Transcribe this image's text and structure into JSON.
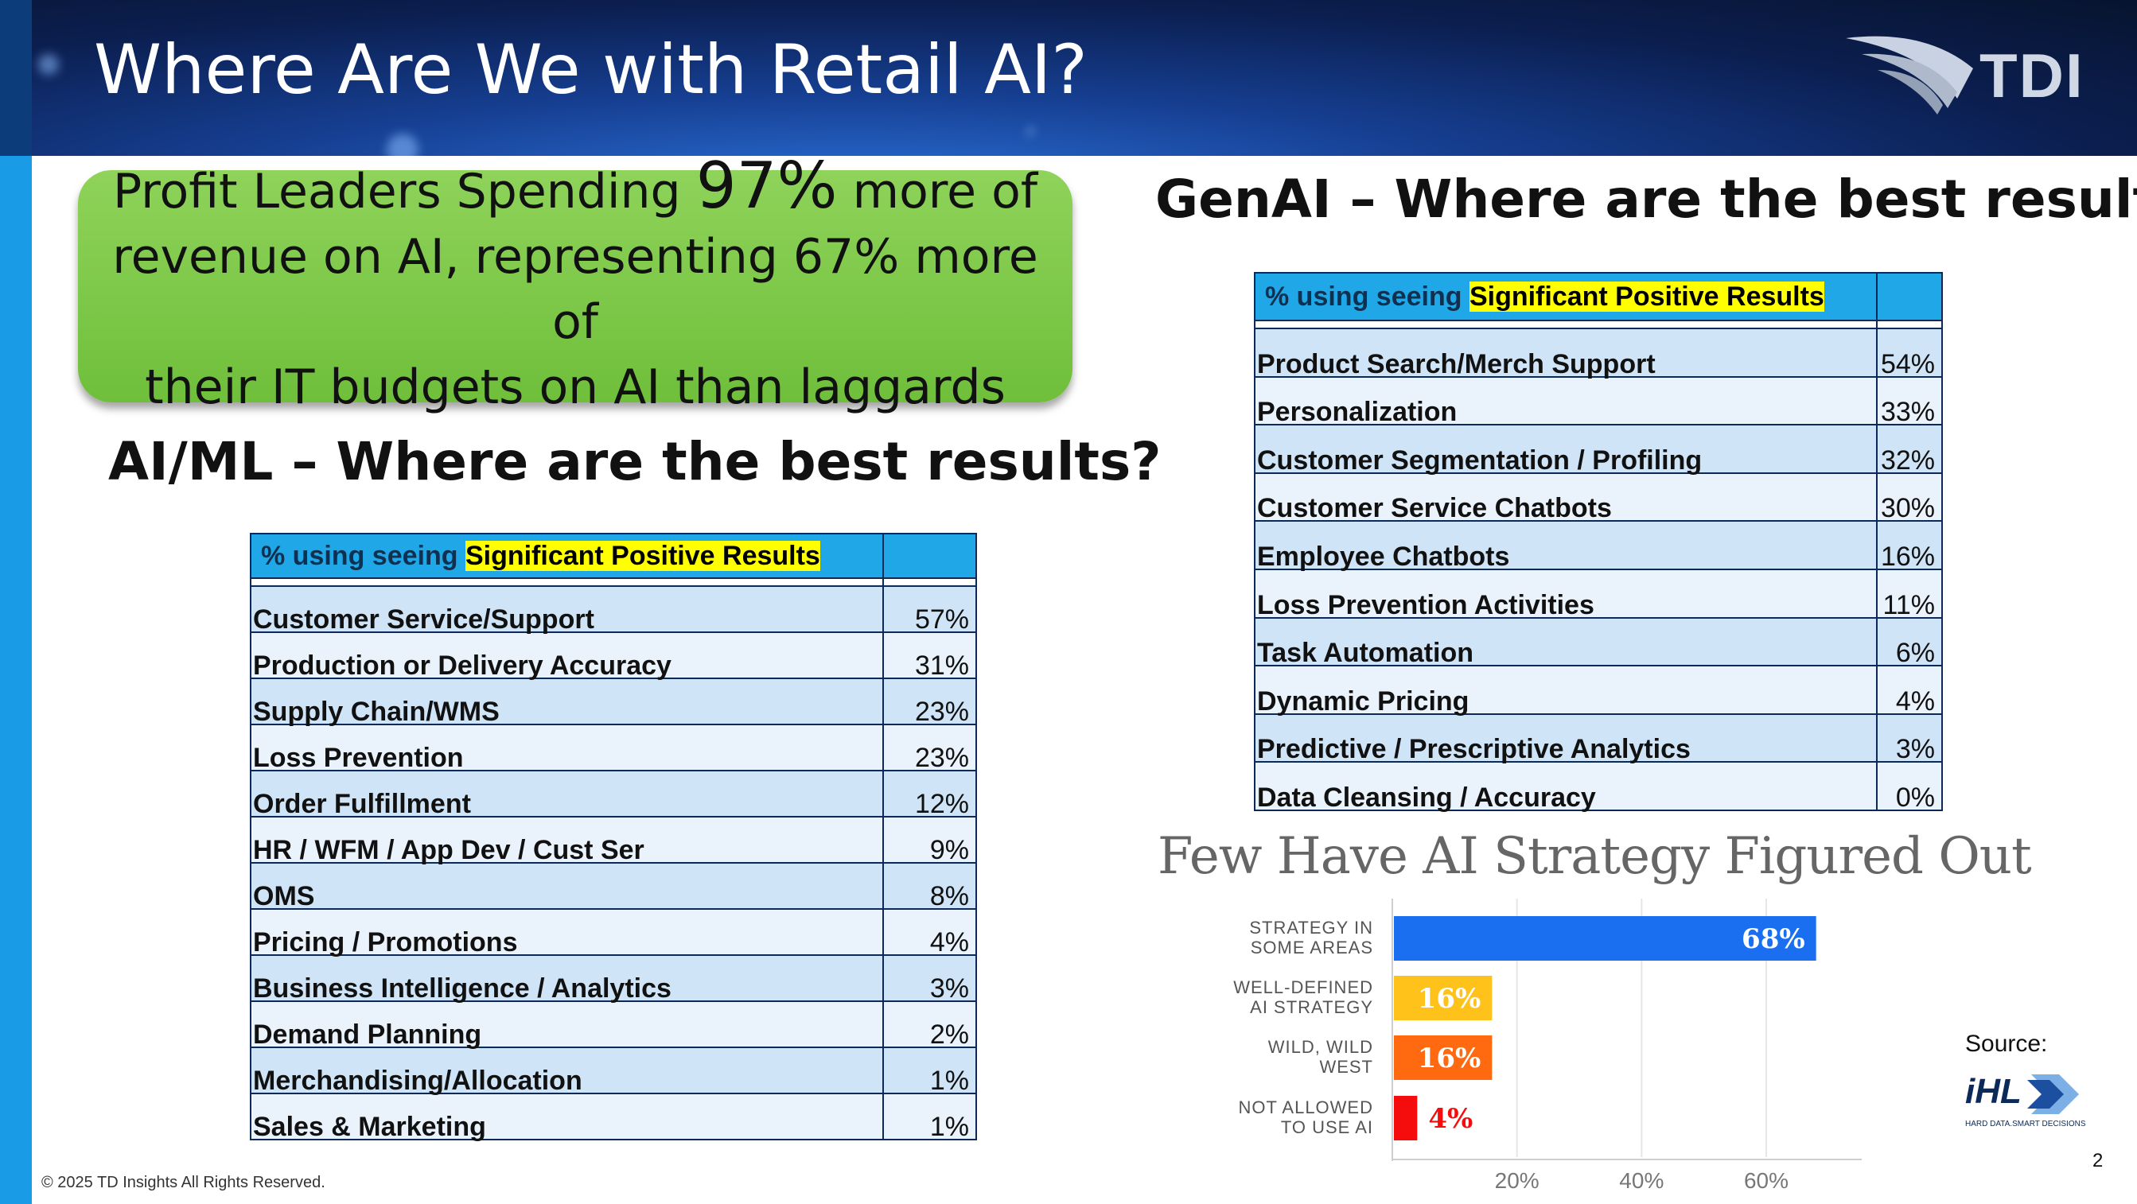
{
  "slide": {
    "title": "Where Are We with Retail AI?",
    "logo_text": "TDI",
    "page_number": "2",
    "copyright": "© 2025 TD Insights All Rights Reserved.",
    "source_label": "Source:",
    "source_logo_text": "iHL",
    "source_logo_tagline": "HARD DATA.SMART DECISIONS"
  },
  "callout": {
    "line1_pre": "Profit Leaders Spending",
    "line1_big": "97%",
    "line1_post": "more of",
    "line2": "revenue on AI, representing 67% more of",
    "line3": "their IT budgets on AI than laggards"
  },
  "aiml": {
    "heading": "AI/ML – Where are the best results?",
    "header_prefix": "% using seeing",
    "header_highlight": "Significant Positive Results",
    "rows": [
      {
        "label": "Customer Service/Support",
        "value": "57%"
      },
      {
        "label": "Production or Delivery Accuracy",
        "value": "31%"
      },
      {
        "label": "Supply Chain/WMS",
        "value": "23%"
      },
      {
        "label": "Loss Prevention",
        "value": "23%"
      },
      {
        "label": "Order Fulfillment",
        "value": "12%"
      },
      {
        "label": "HR / WFM / App Dev / Cust Ser",
        "value": "9%"
      },
      {
        "label": "OMS",
        "value": "8%"
      },
      {
        "label": "Pricing / Promotions",
        "value": "4%"
      },
      {
        "label": "Business Intelligence / Analytics",
        "value": "3%"
      },
      {
        "label": "Demand Planning",
        "value": "2%"
      },
      {
        "label": "Merchandising/Allocation",
        "value": "1%"
      },
      {
        "label": "Sales & Marketing",
        "value": "1%"
      }
    ]
  },
  "genai": {
    "heading": "GenAI – Where are the best results?",
    "header_prefix": "% using seeing",
    "header_highlight": "Significant Positive Results",
    "rows": [
      {
        "label": "Product Search/Merch Support",
        "value": "54%"
      },
      {
        "label": "Personalization",
        "value": "33%"
      },
      {
        "label": "Customer Segmentation / Profiling",
        "value": "32%"
      },
      {
        "label": "Customer Service Chatbots",
        "value": "30%"
      },
      {
        "label": "Employee Chatbots",
        "value": "16%"
      },
      {
        "label": "Loss Prevention Activities",
        "value": "11%"
      },
      {
        "label": "Task Automation",
        "value": "6%"
      },
      {
        "label": "Dynamic Pricing",
        "value": "4%"
      },
      {
        "label": "Predictive / Prescriptive Analytics",
        "value": "3%"
      },
      {
        "label": "Data Cleansing / Accuracy",
        "value": "0%"
      }
    ]
  },
  "chart_data": {
    "type": "bar",
    "orientation": "horizontal",
    "title": "Few Have AI Strategy Figured Out",
    "categories": [
      [
        "STRATEGY IN",
        "SOME AREAS"
      ],
      [
        "WELL-DEFINED",
        "AI STRATEGY"
      ],
      [
        "WILD, WILD",
        "WEST"
      ],
      [
        "NOT ALLOWED",
        "TO USE AI"
      ]
    ],
    "values": [
      68,
      16,
      16,
      4
    ],
    "data_labels": [
      "68%",
      "16%",
      "16%",
      "4%"
    ],
    "bar_colors": [
      "#1a6ff0",
      "#ffc21a",
      "#ff6a10",
      "#f50d0d"
    ],
    "label_colors": [
      "#ffffff",
      "#ffffff",
      "#ffffff",
      "#f50d0d"
    ],
    "xticks": [
      20,
      40,
      60
    ],
    "xtick_labels": [
      "20%",
      "40%",
      "60%"
    ],
    "xlim": [
      0,
      70
    ],
    "grid": true
  }
}
